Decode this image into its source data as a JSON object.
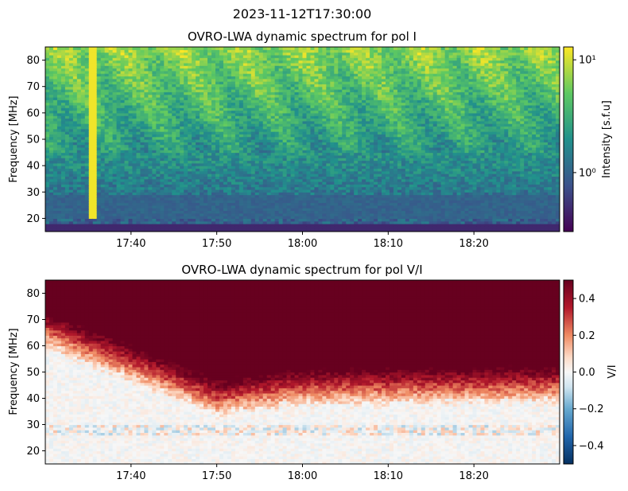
{
  "figure": {
    "suptitle": "2023-11-12T17:30:00"
  },
  "chart_data": [
    {
      "type": "heatmap",
      "title": "OVRO-LWA dynamic spectrum for pol I",
      "xlabel": "",
      "ylabel": "Frequency [MHz]",
      "x_start": "17:30",
      "x_end": "18:30",
      "x_ticks": [
        "17:40",
        "17:50",
        "18:00",
        "18:10",
        "18:20"
      ],
      "x_tick_minutes": [
        10,
        20,
        30,
        40,
        50
      ],
      "ylim": [
        15,
        85
      ],
      "y_ticks": [
        20,
        30,
        40,
        50,
        60,
        70,
        80
      ],
      "colormap": "viridis",
      "color_scale": "log",
      "clim": [
        0.3,
        13
      ],
      "colorbar_label": "Intensity [s.f.u]",
      "colorbar_ticks": [
        {
          "value": 1,
          "label": "10⁰"
        },
        {
          "value": 10,
          "label": "10¹"
        }
      ],
      "features": {
        "burst_minute": 5.5,
        "burst_freq_range_mhz": [
          20,
          85
        ],
        "emission_rising_freq_mhz": 45
      }
    },
    {
      "type": "heatmap",
      "title": "OVRO-LWA dynamic spectrum for pol V/I",
      "xlabel": "",
      "ylabel": "Frequency [MHz]",
      "x_start": "17:30",
      "x_end": "18:30",
      "x_ticks": [
        "17:40",
        "17:50",
        "18:00",
        "18:10",
        "18:20"
      ],
      "x_tick_minutes": [
        10,
        20,
        30,
        40,
        50
      ],
      "ylim": [
        15,
        85
      ],
      "y_ticks": [
        20,
        30,
        40,
        50,
        60,
        70,
        80
      ],
      "colormap": "RdBu_r",
      "color_scale": "linear",
      "clim": [
        -0.5,
        0.5
      ],
      "colorbar_label": "V/I",
      "colorbar_ticks": [
        {
          "value": 0.4,
          "label": "0.4"
        },
        {
          "value": 0.2,
          "label": "0.2"
        },
        {
          "value": 0.0,
          "label": "0.0"
        },
        {
          "value": -0.2,
          "label": "−0.2"
        },
        {
          "value": -0.4,
          "label": "−0.4"
        }
      ],
      "features": {
        "polarized_boundary_freq_mhz": [
          68,
          42,
          46,
          47
        ],
        "boundary_minutes": [
          0,
          20,
          30,
          60
        ]
      }
    }
  ]
}
